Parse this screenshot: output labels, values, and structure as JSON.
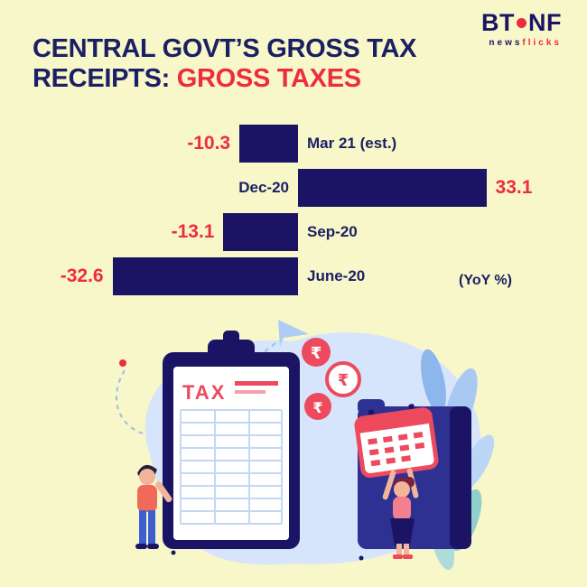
{
  "page": {
    "background": "#F8F7C9",
    "navy": "#1B2064",
    "red": "#ED2B42"
  },
  "logo": {
    "bt": "BT",
    "nf": "NF",
    "tagline_news": "news",
    "tagline_flicks": "flicks"
  },
  "title": {
    "line1": "CENTRAL GOVT’S GROSS TAX",
    "line2_prefix": "RECEIPTS: ",
    "line2_highlight": "GROSS TAXES"
  },
  "chart_data": {
    "type": "bar",
    "orientation": "horizontal",
    "title": "Central govt's gross tax receipts: gross taxes",
    "unit_note": "(YoY %)",
    "categories": [
      "Mar 21 (est.)",
      "Dec-20",
      "Sep-20",
      "June-20"
    ],
    "values": [
      -10.3,
      33.1,
      -13.1,
      -32.6
    ],
    "value_labels": [
      "-10.3",
      "33.1",
      "-13.1",
      "-32.6"
    ],
    "xlim": [
      -35,
      35
    ],
    "grid": false,
    "bar_color": "#1B1464",
    "value_color": "#ED2B42",
    "category_color": "#1B2064"
  },
  "illustration": {
    "tax_label": "TAX",
    "rupee_symbol": "₹"
  }
}
